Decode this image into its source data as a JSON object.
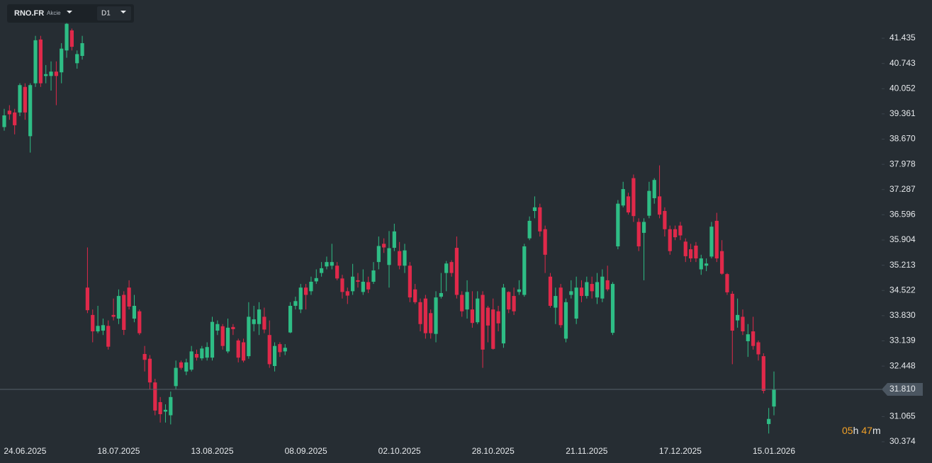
{
  "toolbar": {
    "symbol": "RNO.FR",
    "asset_type": "Akcie",
    "timeframe": "D1"
  },
  "countdown": {
    "hours": "05",
    "hours_unit": "h",
    "minutes": "47",
    "minutes_unit": "m"
  },
  "chart_data": {
    "type": "candlestick",
    "up_color": "#2ebd85",
    "down_color": "#e0294a",
    "categories": [
      null,
      null,
      null,
      null,
      "24.06.2025",
      null,
      null,
      null,
      null,
      null,
      null,
      null,
      null,
      null,
      null,
      null,
      null,
      null,
      null,
      null,
      null,
      null,
      "18.07.2025",
      null,
      null,
      null,
      null,
      null,
      null,
      null,
      null,
      null,
      null,
      null,
      null,
      null,
      null,
      null,
      null,
      null,
      "13.08.2025",
      null,
      null,
      null,
      null,
      null,
      null,
      null,
      null,
      null,
      null,
      null,
      null,
      null,
      null,
      null,
      null,
      null,
      "08.09.2025",
      null,
      null,
      null,
      null,
      null,
      null,
      null,
      null,
      null,
      null,
      null,
      null,
      null,
      null,
      null,
      null,
      null,
      "02.10.2025",
      null,
      null,
      null,
      null,
      null,
      null,
      null,
      null,
      null,
      null,
      null,
      null,
      null,
      null,
      null,
      null,
      null,
      "28.10.2025",
      null,
      null,
      null,
      null,
      null,
      null,
      null,
      null,
      null,
      null,
      null,
      null,
      null,
      null,
      null,
      null,
      null,
      "21.11.2025",
      null,
      null,
      null,
      null,
      null,
      null,
      null,
      null,
      null,
      null,
      null,
      null,
      null,
      null,
      null,
      null,
      null,
      "17.12.2025",
      null,
      null,
      null,
      null,
      null,
      null,
      null,
      null,
      null,
      null,
      null,
      null,
      null,
      null,
      null,
      null,
      null,
      "15.01.2026"
    ],
    "open": [
      39.0,
      39.45,
      39.4,
      39.4,
      40.1,
      38.75,
      40.2,
      41.4,
      40.4,
      40.4,
      40.52,
      40.5,
      41.1,
      41.65,
      40.75,
      40.95,
      34.6,
      33.85,
      33.4,
      33.42,
      33.55,
      33.85,
      33.75,
      34.4,
      34.6,
      33.75,
      33.95,
      32.78,
      32.65,
      32.0,
      31.46,
      31.2,
      31.1,
      31.9,
      32.55,
      32.3,
      32.35,
      32.78,
      32.66,
      32.68,
      32.68,
      33.42,
      33.54,
      32.85,
      33.52,
      33.15,
      33.1,
      32.72,
      33.6,
      33.6,
      33.8,
      33.3,
      32.45,
      33.05,
      32.85,
      33.37,
      34.1,
      34.0,
      34.6,
      34.5,
      34.77,
      35.0,
      35.18,
      35.2,
      35.2,
      34.85,
      34.5,
      34.5,
      34.8,
      34.48,
      34.75,
      34.76,
      35.3,
      35.8,
      35.22,
      35.69,
      35.6,
      35.2,
      35.2,
      34.55,
      34.2,
      34.3,
      33.9,
      33.33,
      34.35,
      35.0,
      35.3,
      35.69,
      34.4,
      34.0,
      34.0,
      33.65,
      34.4,
      34.05,
      34.0,
      33.95,
      33.07,
      34.48,
      34.37,
      34.48,
      34.4,
      35.95,
      36.7,
      36.8,
      36.2,
      34.9,
      34.05,
      34.6,
      33.2,
      34.4,
      33.75,
      34.6,
      34.37,
      34.7,
      34.33,
      34.3,
      34.8,
      33.36,
      35.73,
      36.85,
      37.1,
      37.6,
      36.4,
      36.1,
      36.57,
      37.05,
      37.1,
      36.7,
      36.2,
      36.2,
      36.3,
      35.86,
      35.65,
      35.75,
      35.1,
      35.2,
      35.45,
      36.43,
      35.6,
      34.97,
      34.43,
      33.7,
      33.8,
      33.13,
      33.4,
      33.1,
      32.72,
      30.86,
      31.34
    ],
    "high": [
      39.5,
      39.6,
      39.5,
      40.2,
      40.2,
      40.2,
      41.5,
      41.5,
      40.7,
      40.8,
      40.8,
      41.3,
      41.85,
      41.7,
      41.1,
      41.5,
      35.7,
      34.0,
      34.1,
      33.75,
      33.7,
      34.3,
      34.55,
      34.5,
      34.8,
      34.4,
      34.0,
      33.0,
      32.75,
      32.1,
      31.6,
      31.4,
      31.75,
      32.6,
      32.6,
      32.65,
      33.0,
      32.9,
      33.0,
      33.1,
      33.8,
      33.7,
      33.6,
      33.75,
      33.6,
      33.2,
      33.2,
      34.2,
      34.1,
      34.2,
      34.05,
      33.7,
      33.1,
      33.1,
      33.05,
      34.2,
      34.35,
      34.7,
      34.7,
      34.9,
      35.1,
      35.3,
      35.45,
      35.8,
      35.3,
      34.95,
      34.6,
      35.25,
      35.0,
      35.1,
      34.9,
      35.3,
      36.0,
      35.95,
      36.15,
      36.35,
      35.85,
      35.8,
      35.3,
      34.7,
      34.3,
      34.4,
      34.0,
      34.5,
      35.0,
      35.33,
      35.35,
      36.0,
      34.5,
      34.8,
      34.5,
      34.5,
      34.5,
      34.1,
      34.3,
      34.1,
      34.7,
      34.5,
      34.6,
      34.8,
      35.8,
      36.55,
      37.1,
      36.9,
      36.3,
      35.0,
      34.6,
      34.7,
      34.3,
      34.8,
      34.9,
      34.8,
      34.9,
      34.9,
      35.0,
      35.1,
      35.2,
      34.75,
      37.0,
      37.5,
      37.2,
      37.7,
      36.5,
      36.5,
      37.5,
      37.6,
      37.95,
      36.8,
      36.3,
      36.3,
      36.4,
      35.95,
      35.8,
      35.85,
      35.5,
      35.4,
      36.4,
      36.65,
      35.9,
      35.0,
      34.5,
      34.3,
      34.0,
      33.6,
      33.8,
      33.15,
      32.8,
      31.3,
      32.3
    ],
    "low": [
      38.9,
      39.2,
      38.8,
      39.3,
      39.2,
      38.3,
      40.1,
      40.1,
      40.2,
      40.0,
      39.6,
      40.2,
      40.9,
      41.1,
      40.6,
      40.85,
      33.9,
      33.1,
      33.35,
      33.3,
      32.9,
      33.7,
      33.6,
      33.3,
      34.0,
      33.65,
      33.3,
      32.3,
      31.8,
      31.1,
      30.9,
      30.9,
      30.85,
      31.8,
      32.35,
      32.2,
      32.3,
      32.6,
      32.6,
      32.6,
      32.6,
      33.3,
      32.9,
      32.8,
      33.3,
      32.55,
      32.55,
      32.65,
      33.4,
      33.3,
      33.35,
      32.4,
      32.3,
      32.7,
      32.75,
      33.35,
      34.0,
      33.9,
      34.0,
      34.4,
      34.7,
      34.9,
      35.1,
      35.1,
      34.8,
      34.3,
      34.15,
      34.4,
      34.6,
      34.4,
      34.45,
      34.7,
      35.1,
      35.55,
      34.6,
      35.6,
      35.1,
      35.0,
      34.2,
      34.15,
      33.4,
      33.2,
      33.2,
      33.1,
      34.3,
      34.5,
      34.9,
      34.3,
      33.8,
      33.75,
      33.5,
      33.6,
      32.4,
      33.1,
      32.9,
      33.4,
      32.95,
      33.9,
      33.85,
      34.4,
      34.35,
      35.9,
      36.5,
      36.0,
      35.0,
      34.05,
      33.6,
      33.5,
      33.1,
      34.3,
      33.6,
      34.2,
      34.3,
      34.3,
      34.15,
      34.2,
      34.5,
      33.3,
      35.65,
      36.8,
      36.6,
      36.4,
      35.6,
      34.8,
      36.5,
      36.9,
      36.5,
      36.0,
      35.5,
      35.9,
      35.9,
      35.3,
      35.3,
      35.3,
      34.95,
      35.05,
      35.4,
      35.3,
      34.95,
      34.4,
      32.5,
      33.5,
      33.3,
      32.7,
      32.9,
      32.6,
      31.7,
      30.6,
      31.1
    ],
    "close": [
      39.32,
      39.35,
      39.05,
      40.15,
      39.4,
      40.15,
      41.38,
      40.2,
      40.45,
      40.52,
      40.4,
      41.15,
      41.83,
      41.2,
      41.0,
      41.3,
      33.98,
      33.4,
      33.55,
      33.57,
      32.98,
      33.8,
      34.37,
      33.44,
      34.08,
      34.1,
      33.35,
      32.62,
      32.0,
      31.23,
      31.13,
      31.25,
      31.6,
      32.4,
      32.4,
      32.55,
      32.85,
      32.68,
      32.93,
      32.97,
      33.66,
      33.6,
      33.0,
      33.5,
      33.46,
      32.68,
      32.6,
      33.8,
      33.73,
      34.0,
      33.45,
      32.5,
      33.0,
      32.83,
      32.95,
      34.1,
      34.23,
      34.6,
      34.4,
      34.76,
      34.86,
      35.13,
      35.3,
      35.3,
      34.85,
      34.48,
      34.38,
      34.9,
      34.76,
      34.76,
      34.55,
      35.07,
      35.74,
      35.7,
      35.68,
      36.14,
      35.2,
      35.62,
      34.33,
      34.2,
      33.6,
      33.35,
      33.35,
      34.33,
      34.45,
      35.26,
      35.0,
      34.4,
      33.95,
      34.48,
      33.63,
      34.3,
      32.9,
      33.56,
      32.92,
      33.62,
      34.6,
      34.0,
      33.95,
      34.55,
      35.73,
      36.43,
      36.8,
      36.14,
      35.5,
      34.1,
      34.37,
      33.57,
      34.2,
      34.5,
      34.6,
      34.37,
      34.75,
      34.5,
      34.75,
      34.9,
      34.55,
      34.7,
      36.9,
      37.3,
      36.66,
      36.56,
      35.73,
      36.4,
      37.25,
      37.55,
      36.6,
      36.2,
      35.6,
      35.98,
      36.03,
      35.46,
      35.4,
      35.4,
      35.4,
      35.26,
      36.27,
      35.4,
      34.98,
      34.47,
      33.42,
      33.85,
      33.4,
      33.32,
      33.0,
      32.77,
      31.77,
      31.0,
      31.81
    ],
    "ylim": [
      30.335,
      42.483
    ],
    "yticks": [
      41.435,
      40.743,
      40.052,
      39.361,
      {
        "value": 38.67,
        "label": "38.670"
      },
      37.978,
      37.287,
      36.596,
      35.904,
      35.213,
      34.522,
      {
        "value": 33.83,
        "label": "33.830"
      },
      33.139,
      32.448,
      31.065,
      30.374
    ],
    "last_price": {
      "value": 31.81,
      "label": "31.810"
    }
  }
}
